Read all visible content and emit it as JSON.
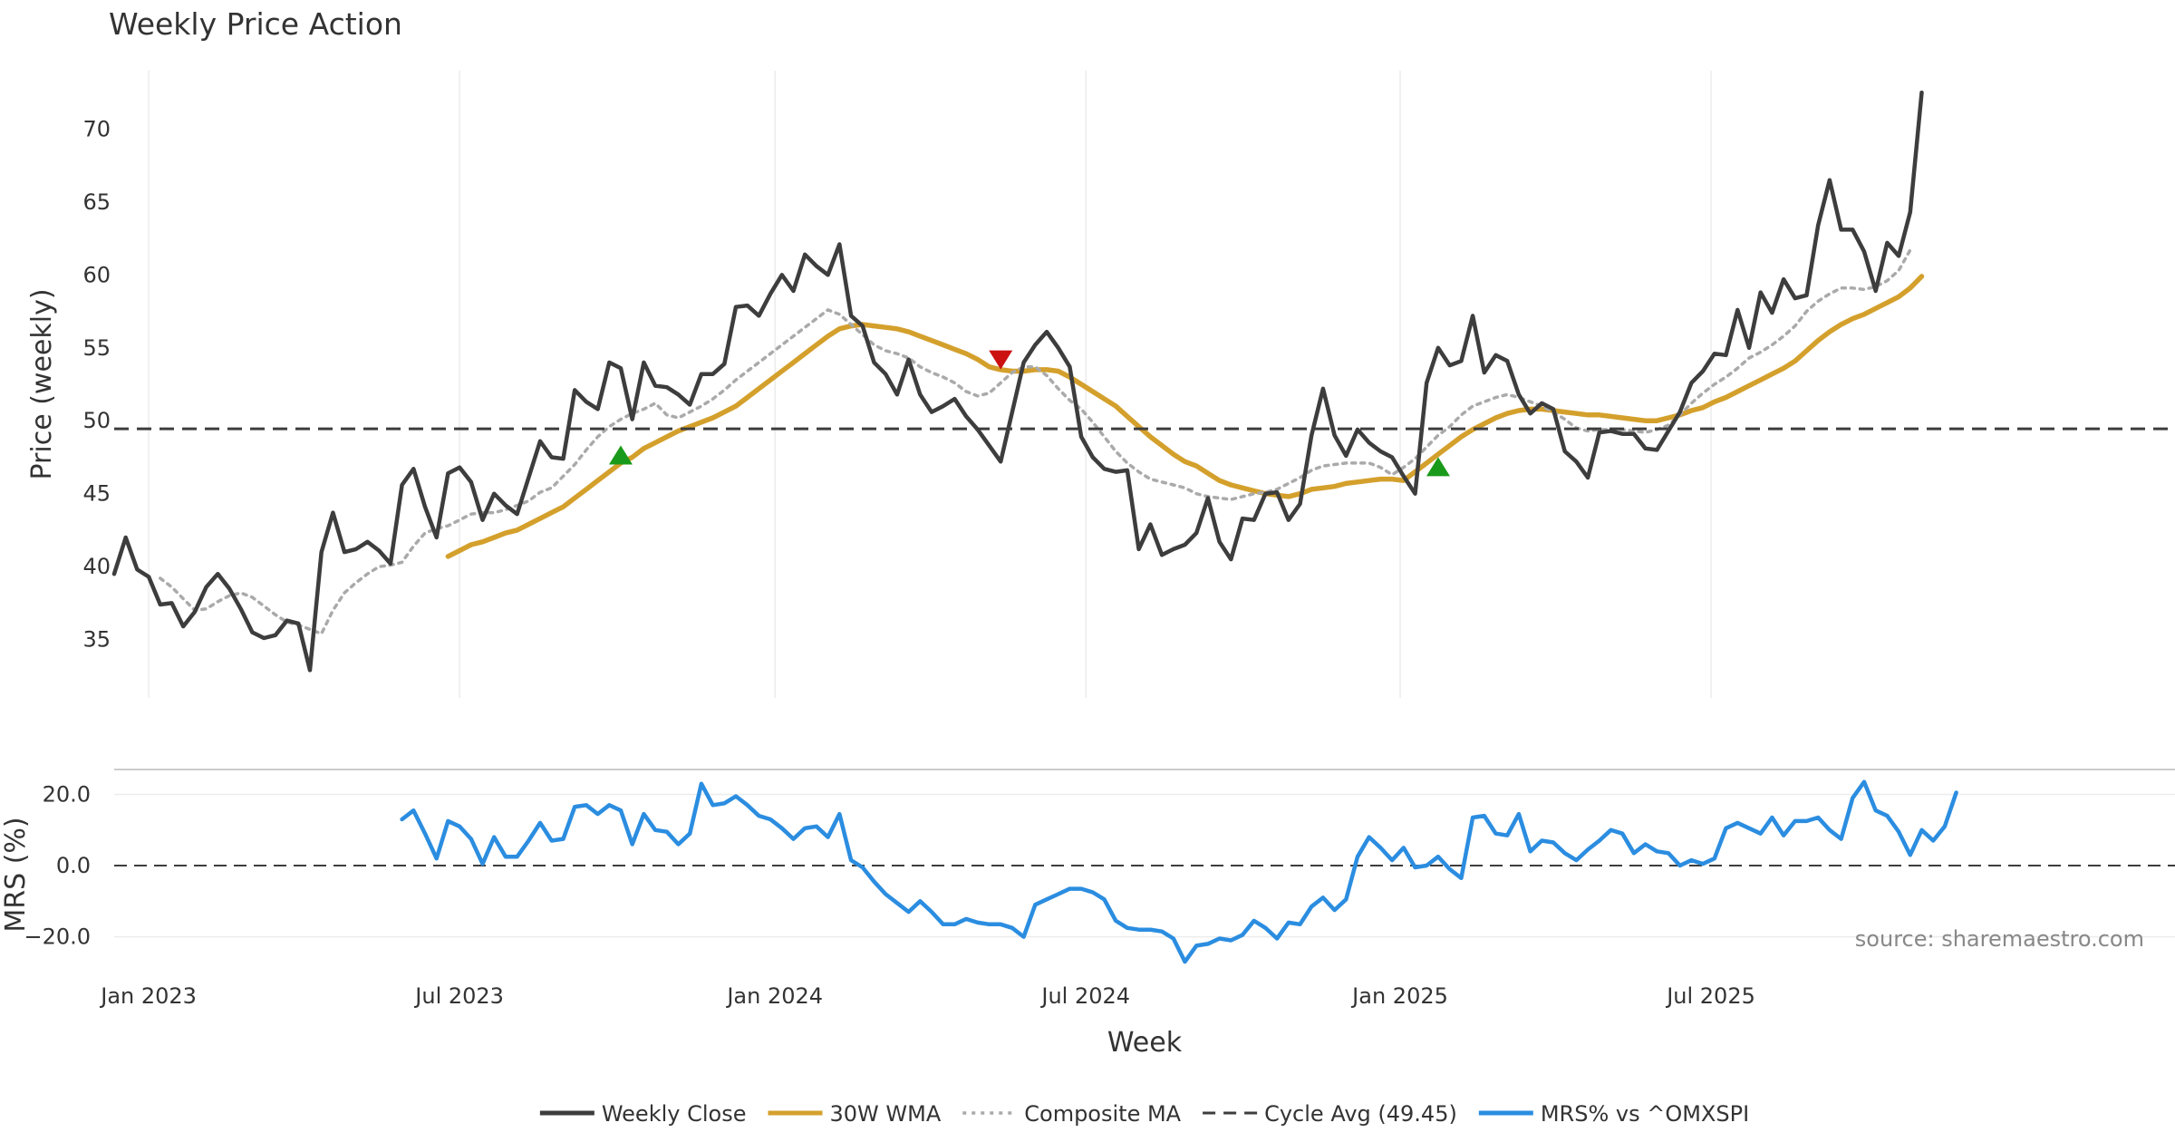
{
  "chart_data": [
    {
      "type": "line",
      "title": "Weekly Price Action",
      "xlabel": "",
      "ylabel": "Price (weekly)",
      "ylim": [
        31,
        74
      ],
      "xlim": [
        0,
        179
      ],
      "yticks": [
        "35",
        "40",
        "45",
        "50",
        "55",
        "60",
        "65",
        "70"
      ],
      "ytick_values": [
        35,
        40,
        45,
        50,
        55,
        60,
        65,
        70
      ],
      "grid": true,
      "x": "week index (0 = first week shown, 2022-12-12)",
      "series": [
        {
          "name": "Weekly Close",
          "color": "#3d3d3d",
          "start": 0,
          "values": [
            39.5,
            42.0,
            39.8,
            39.3,
            37.4,
            37.5,
            35.9,
            36.9,
            38.6,
            39.5,
            38.5,
            37.1,
            35.5,
            35.1,
            35.3,
            36.3,
            36.1,
            32.9,
            41.0,
            43.7,
            41.0,
            41.2,
            41.7,
            41.1,
            40.2,
            45.6,
            46.7,
            44.1,
            42.0,
            46.4,
            46.8,
            45.8,
            43.2,
            45.0,
            44.2,
            43.6,
            46.1,
            48.6,
            47.5,
            47.4,
            52.1,
            51.3,
            50.8,
            54.0,
            53.6,
            50.1,
            54.0,
            52.4,
            52.3,
            51.8,
            51.1,
            53.2,
            53.2,
            53.9,
            57.8,
            57.9,
            57.2,
            58.7,
            60.0,
            58.9,
            61.4,
            60.6,
            60.0,
            62.1,
            57.2,
            56.5,
            54.0,
            53.2,
            51.8,
            54.2,
            51.8,
            50.6,
            51.0,
            51.5,
            50.3,
            49.4,
            48.3,
            47.2,
            50.6,
            54.0,
            55.2,
            56.1,
            55.0,
            53.7,
            48.9,
            47.5,
            46.7,
            46.5,
            46.6,
            41.2,
            42.9,
            40.8,
            41.2,
            41.5,
            42.3,
            44.7,
            41.7,
            40.5,
            43.3,
            43.2,
            45.0,
            45.1,
            43.2,
            44.3,
            49.0,
            52.2,
            49.0,
            47.6,
            49.4,
            48.5,
            47.9,
            47.5,
            46.2,
            45.0,
            52.6,
            55.0,
            53.8,
            54.1,
            57.2,
            53.3,
            54.5,
            54.1,
            51.8,
            50.5,
            51.2,
            50.8,
            47.9,
            47.2,
            46.1,
            49.2,
            49.3,
            49.1,
            49.1,
            48.1,
            48.0,
            49.3,
            50.6,
            52.6,
            53.4,
            54.6,
            54.5,
            57.6,
            55.0,
            58.8,
            57.4,
            59.7,
            58.4,
            58.6,
            63.4,
            66.5,
            63.1,
            63.1,
            61.6,
            58.9,
            62.2,
            61.3,
            64.3,
            72.5
          ]
        },
        {
          "name": "30W WMA",
          "color": "#d4a02c",
          "start": 29,
          "values": [
            40.7,
            41.1,
            41.5,
            41.7,
            42.0,
            42.3,
            42.5,
            42.9,
            43.3,
            43.7,
            44.1,
            44.7,
            45.3,
            45.9,
            46.5,
            47.1,
            47.5,
            48.1,
            48.5,
            48.9,
            49.3,
            49.6,
            49.9,
            50.2,
            50.6,
            51.0,
            51.6,
            52.2,
            52.8,
            53.4,
            54.0,
            54.6,
            55.2,
            55.8,
            56.3,
            56.5,
            56.6,
            56.5,
            56.4,
            56.3,
            56.1,
            55.8,
            55.5,
            55.2,
            54.9,
            54.6,
            54.2,
            53.7,
            53.5,
            53.4,
            53.4,
            53.5,
            53.5,
            53.4,
            53.0,
            52.5,
            52.0,
            51.5,
            51.0,
            50.3,
            49.6,
            48.9,
            48.3,
            47.7,
            47.2,
            46.9,
            46.4,
            45.9,
            45.6,
            45.4,
            45.2,
            45.0,
            44.9,
            44.8,
            45.0,
            45.3,
            45.4,
            45.5,
            45.7,
            45.8,
            45.9,
            46.0,
            46.0,
            45.9,
            46.5,
            47.1,
            47.7,
            48.3,
            48.9,
            49.4,
            49.8,
            50.2,
            50.5,
            50.7,
            50.8,
            50.8,
            50.7,
            50.6,
            50.5,
            50.4,
            50.4,
            50.3,
            50.2,
            50.1,
            50.0,
            50.0,
            50.2,
            50.4,
            50.7,
            50.9,
            51.3,
            51.6,
            52.0,
            52.4,
            52.8,
            53.2,
            53.6,
            54.1,
            54.8,
            55.5,
            56.1,
            56.6,
            57.0,
            57.3,
            57.7,
            58.1,
            58.5,
            59.1,
            59.9
          ]
        },
        {
          "name": "Composite MA",
          "color": "#aaaaaa",
          "start": 4,
          "values": [
            39.2,
            38.6,
            37.8,
            37.0,
            37.1,
            37.6,
            38.0,
            38.2,
            37.9,
            37.3,
            36.7,
            36.2,
            36.0,
            35.7,
            35.4,
            37.0,
            38.2,
            38.9,
            39.5,
            40.0,
            40.1,
            40.3,
            41.4,
            42.3,
            42.6,
            42.8,
            43.2,
            43.6,
            43.7,
            43.7,
            43.9,
            44.2,
            44.5,
            45.1,
            45.4,
            46.2,
            47.0,
            48.0,
            48.9,
            49.6,
            50.1,
            50.5,
            50.8,
            51.2,
            50.4,
            50.2,
            50.6,
            51.0,
            51.5,
            52.1,
            52.8,
            53.4,
            54.0,
            54.6,
            55.2,
            55.8,
            56.4,
            57.0,
            57.6,
            57.3,
            56.6,
            55.9,
            55.2,
            54.8,
            54.6,
            54.3,
            53.7,
            53.3,
            53.0,
            52.6,
            52.0,
            51.7,
            51.9,
            52.6,
            53.3,
            53.7,
            53.7,
            53.1,
            52.2,
            51.4,
            50.8,
            49.9,
            48.9,
            47.9,
            47.1,
            46.5,
            46.0,
            45.8,
            45.6,
            45.4,
            45.0,
            44.8,
            44.7,
            44.6,
            44.8,
            45.0,
            45.1,
            45.3,
            45.7,
            46.1,
            46.6,
            46.9,
            47.0,
            47.1,
            47.1,
            47.1,
            46.8,
            46.3,
            46.8,
            47.4,
            48.2,
            49.0,
            49.6,
            50.4,
            51.0,
            51.3,
            51.6,
            51.8,
            51.6,
            51.3,
            51.0,
            50.6,
            50.1,
            49.5,
            49.3,
            49.4,
            49.4,
            49.4,
            49.3,
            49.2,
            49.4,
            49.7,
            50.4,
            51.2,
            51.9,
            52.5,
            53.0,
            53.6,
            54.3,
            54.7,
            55.2,
            55.8,
            56.5,
            57.5,
            58.2,
            58.7,
            59.1,
            59.1,
            59.0,
            59.2,
            59.6,
            60.3,
            61.7
          ]
        },
        {
          "name": "Cycle Avg (49.45)",
          "color": "#3d3d3d",
          "type": "hline",
          "value": 49.45
        }
      ],
      "markers": [
        {
          "type": "buy",
          "color": "#1a9a1a",
          "x": 44,
          "y": 47.5
        },
        {
          "type": "sell",
          "color": "#cc1111",
          "x": 77,
          "y": 54.2
        },
        {
          "type": "buy",
          "color": "#1a9a1a",
          "x": 115,
          "y": 46.7
        }
      ]
    },
    {
      "type": "line",
      "title": "",
      "xlabel": "Week",
      "ylabel": "MRS (%)",
      "ylim": [
        -28,
        27
      ],
      "xlim": [
        0,
        179
      ],
      "yticks": [
        "20.0",
        "0.0",
        "−20.0"
      ],
      "ytick_values": [
        20,
        0,
        -20
      ],
      "grid": true,
      "xticks": [
        {
          "label": "Jan 2023",
          "value": 3
        },
        {
          "label": "Jul 2023",
          "value": 30
        },
        {
          "label": "Jan 2024",
          "value": 57.4
        },
        {
          "label": "Jul 2024",
          "value": 84.4
        },
        {
          "label": "Jan 2025",
          "value": 111.7
        },
        {
          "label": "Jul 2025",
          "value": 138.7
        }
      ],
      "zero_line": 0,
      "series": [
        {
          "name": "MRS% vs ^OMXSPI",
          "color": "#2b8de0",
          "start": 25,
          "values": [
            13,
            15.5,
            9,
            2,
            12.5,
            11,
            7.5,
            0.5,
            8,
            2.5,
            2.5,
            7,
            12,
            7,
            7.5,
            16.5,
            17,
            14.5,
            17,
            15.5,
            6,
            14.5,
            10,
            9.5,
            6,
            9,
            23,
            17,
            17.5,
            19.5,
            17,
            14,
            13,
            10.5,
            7.5,
            10.5,
            11,
            8,
            14.5,
            1.5,
            -0.5,
            -4.5,
            -8,
            -10.5,
            -13,
            -10,
            -13,
            -16.5,
            -16.5,
            -15,
            -16,
            -16.5,
            -16.5,
            -17.5,
            -20,
            -11,
            -9.5,
            -8,
            -6.5,
            -6.5,
            -7.5,
            -9.5,
            -15.5,
            -17.5,
            -18,
            -18,
            -18.5,
            -20.5,
            -27,
            -22.5,
            -22,
            -20.5,
            -21,
            -19.5,
            -15.5,
            -17.5,
            -20.5,
            -16,
            -16.5,
            -11.5,
            -9,
            -12.5,
            -9.5,
            2.5,
            8,
            5,
            1.5,
            5,
            -0.5,
            0,
            2.5,
            -1,
            -3.5,
            13.5,
            14,
            9,
            8.5,
            14.5,
            4,
            7,
            6.5,
            3.5,
            1.5,
            4.5,
            7,
            10,
            9,
            3.5,
            6,
            4,
            3.5,
            0,
            1.5,
            0.5,
            2,
            10.5,
            12,
            10.5,
            9,
            13.5,
            8.5,
            12.5,
            12.5,
            13.5,
            10,
            7.5,
            19,
            23.5,
            15.5,
            14,
            9.5,
            3,
            10,
            7,
            11,
            20.5
          ]
        }
      ],
      "annotations": [
        "source: sharemaestro.com"
      ]
    }
  ],
  "legend": {
    "placement": "bottom-center",
    "items": [
      {
        "label": "Weekly Close",
        "color": "#3d3d3d",
        "style": "solid"
      },
      {
        "label": "30W WMA",
        "color": "#d4a02c",
        "style": "solid"
      },
      {
        "label": "Composite MA",
        "color": "#aaaaaa",
        "style": "dotted"
      },
      {
        "label": "Cycle Avg (49.45)",
        "color": "#3d3d3d",
        "style": "dashed"
      },
      {
        "label": "MRS% vs ^OMXSPI",
        "color": "#2b8de0",
        "style": "solid"
      }
    ]
  }
}
